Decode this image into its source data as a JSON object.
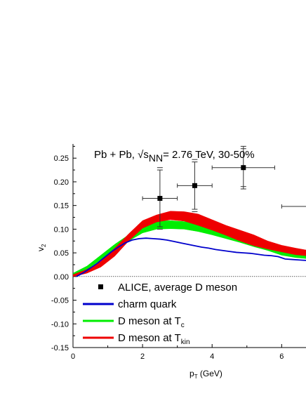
{
  "chart_data": {
    "type": "line",
    "title": "Pb + Pb, √sNN= 2.76 TeV, 30-50%",
    "title_parts": {
      "pre": "Pb + Pb, √s",
      "sub": "NN",
      "post": "= 2.76 TeV, 30-50%"
    },
    "xlabel": "p",
    "xlabel_sub": "T",
    "xlabel_unit": " (GeV)",
    "ylabel": "v",
    "ylabel_sub": "2",
    "xlim": [
      0,
      6.7
    ],
    "ylim": [
      -0.15,
      0.28
    ],
    "x_ticks": [
      0,
      2,
      4,
      6
    ],
    "x_tick_labels": [
      "0",
      "2",
      "4",
      "6"
    ],
    "y_ticks": [
      -0.15,
      -0.1,
      -0.05,
      0.0,
      0.05,
      0.1,
      0.15,
      0.2,
      0.25
    ],
    "y_tick_labels": [
      "-0.15",
      "-0.10",
      "-0.05",
      "0.00",
      "0.05",
      "0.10",
      "0.15",
      "0.20",
      "0.25"
    ],
    "zero_line": true,
    "legend_position": "bottom-left",
    "legend": [
      {
        "label": "ALICE, average D meson",
        "sub": "",
        "kind": "marker",
        "color": "#000000"
      },
      {
        "label": "charm quark",
        "sub": "",
        "kind": "line",
        "color": "#0000cc"
      },
      {
        "label": "D meson at T",
        "sub": "c",
        "kind": "line",
        "color": "#00ee00"
      },
      {
        "label": "D meson at T",
        "sub": "kin",
        "kind": "line",
        "color": "#ee0000"
      }
    ],
    "series": [
      {
        "name": "ALICE, average D meson",
        "style": "points",
        "color": "#000000",
        "points": [
          {
            "x": 2.5,
            "y": 0.165,
            "xerr": 0.5,
            "yerr_up": 0.06,
            "yerr_down": 0.06,
            "syst_up": 0.065,
            "syst_down": 0.065
          },
          {
            "x": 3.5,
            "y": 0.192,
            "xerr": 0.5,
            "yerr_up": 0.05,
            "yerr_down": 0.05,
            "syst_up": 0.055,
            "syst_down": 0.055
          },
          {
            "x": 4.9,
            "y": 0.23,
            "xerr": 0.9,
            "yerr_up": 0.045,
            "yerr_down": 0.045,
            "syst_up": 0.04,
            "syst_down": 0.04
          },
          {
            "x": 7.0,
            "y": 0.148,
            "xerr": 1.0,
            "yerr_up": 0,
            "yerr_down": 0,
            "syst_up": 0,
            "syst_down": 0
          }
        ]
      },
      {
        "name": "charm quark",
        "style": "line",
        "color": "#0000cc",
        "x": [
          0.1,
          0.3,
          0.5,
          0.7,
          0.9,
          1.1,
          1.3,
          1.5,
          1.7,
          1.9,
          2.1,
          2.3,
          2.5,
          2.7,
          2.9,
          3.1,
          3.3,
          3.5,
          3.7,
          3.9,
          4.1,
          4.3,
          4.5,
          4.7,
          4.9,
          5.1,
          5.3,
          5.5,
          5.7,
          5.9,
          6.1,
          6.3,
          6.5,
          6.7
        ],
        "y": [
          0.0,
          0.008,
          0.018,
          0.028,
          0.04,
          0.052,
          0.062,
          0.071,
          0.077,
          0.08,
          0.081,
          0.08,
          0.079,
          0.077,
          0.074,
          0.071,
          0.068,
          0.065,
          0.062,
          0.06,
          0.057,
          0.055,
          0.053,
          0.051,
          0.05,
          0.049,
          0.047,
          0.045,
          0.044,
          0.042,
          0.037,
          0.036,
          0.035,
          0.034
        ]
      },
      {
        "name": "D meson at T",
        "name_sub": "c",
        "style": "band",
        "color": "#00ee00",
        "x": [
          0.0,
          0.4,
          0.8,
          1.2,
          1.6,
          2.0,
          2.4,
          2.8,
          3.2,
          3.6,
          4.0,
          4.4,
          4.8,
          5.2,
          5.6,
          6.0,
          6.4,
          6.7
        ],
        "y_low": [
          0.003,
          0.015,
          0.035,
          0.055,
          0.075,
          0.092,
          0.1,
          0.101,
          0.1,
          0.095,
          0.088,
          0.08,
          0.072,
          0.063,
          0.055,
          0.045,
          0.04,
          0.038
        ],
        "y_high": [
          0.007,
          0.022,
          0.045,
          0.068,
          0.088,
          0.11,
          0.117,
          0.118,
          0.116,
          0.112,
          0.106,
          0.099,
          0.09,
          0.08,
          0.067,
          0.058,
          0.05,
          0.048
        ]
      },
      {
        "name": "D meson at T",
        "name_sub": "kin",
        "style": "band",
        "color": "#ee0000",
        "x": [
          0.0,
          0.4,
          0.8,
          1.2,
          1.6,
          2.0,
          2.4,
          2.8,
          3.2,
          3.6,
          4.0,
          4.4,
          4.8,
          5.2,
          5.6,
          6.0,
          6.4,
          6.7
        ],
        "y_low": [
          0.0,
          0.007,
          0.02,
          0.043,
          0.075,
          0.102,
          0.115,
          0.12,
          0.117,
          0.108,
          0.098,
          0.087,
          0.075,
          0.065,
          0.058,
          0.052,
          0.046,
          0.044
        ],
        "y_high": [
          0.004,
          0.015,
          0.032,
          0.06,
          0.09,
          0.118,
          0.13,
          0.138,
          0.137,
          0.132,
          0.12,
          0.108,
          0.098,
          0.088,
          0.075,
          0.066,
          0.06,
          0.056
        ]
      }
    ]
  }
}
